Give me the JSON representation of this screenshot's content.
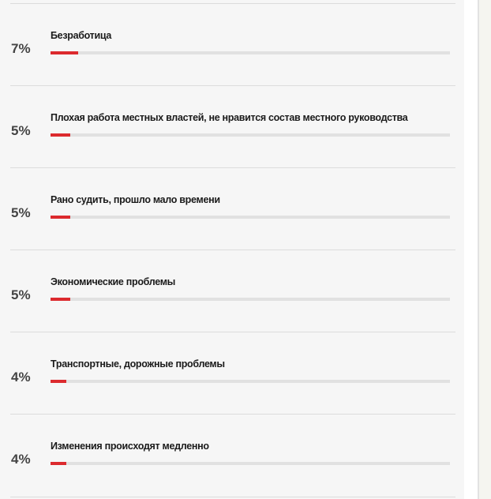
{
  "accent_color": "#dc2a2e",
  "items": [
    {
      "percent_label": "7%",
      "value": 7,
      "label": "Безработица"
    },
    {
      "percent_label": "5%",
      "value": 5,
      "label": "Плохая работа местных властей, не нравится состав местного руководства"
    },
    {
      "percent_label": "5%",
      "value": 5,
      "label": "Рано судить, прошло мало времени"
    },
    {
      "percent_label": "5%",
      "value": 5,
      "label": "Экономические проблемы"
    },
    {
      "percent_label": "4%",
      "value": 4,
      "label": "Транспортные, дорожные проблемы"
    },
    {
      "percent_label": "4%",
      "value": 4,
      "label": "Изменения происходят медленно"
    }
  ]
}
